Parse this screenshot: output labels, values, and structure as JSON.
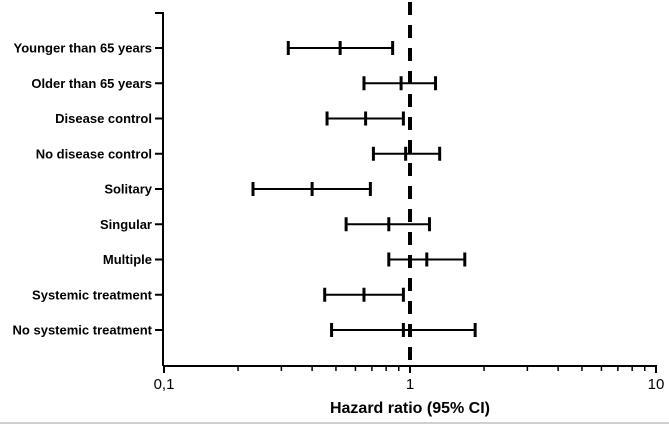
{
  "chart_data": {
    "type": "forest",
    "title": "",
    "x_axis": {
      "label": "Hazard ratio (95% CI)",
      "scale": "log",
      "min": 0.1,
      "max": 10,
      "major_ticks": [
        0.1,
        1,
        10
      ],
      "major_tick_labels": [
        "0,1",
        "1",
        "10"
      ],
      "minor_ticks": [
        0.2,
        0.3,
        0.4,
        0.5,
        0.6,
        0.7,
        0.8,
        0.9,
        2,
        3,
        4,
        5,
        6,
        7,
        8,
        9
      ]
    },
    "reference_line_x": 1,
    "legend": "none",
    "grid": false,
    "rows": [
      {
        "label": "Younger than 65 years",
        "hr": 0.52,
        "ci_low": 0.32,
        "ci_high": 0.85
      },
      {
        "label": "Older than 65 years",
        "hr": 0.92,
        "ci_low": 0.65,
        "ci_high": 1.27
      },
      {
        "label": "Disease control",
        "hr": 0.66,
        "ci_low": 0.46,
        "ci_high": 0.94
      },
      {
        "label": "No disease control",
        "hr": 0.96,
        "ci_low": 0.71,
        "ci_high": 1.32
      },
      {
        "label": "Solitary",
        "hr": 0.4,
        "ci_low": 0.23,
        "ci_high": 0.69
      },
      {
        "label": "Singular",
        "hr": 0.82,
        "ci_low": 0.55,
        "ci_high": 1.2
      },
      {
        "label": "Multiple",
        "hr": 1.17,
        "ci_low": 0.82,
        "ci_high": 1.67
      },
      {
        "label": "Systemic treatment",
        "hr": 0.65,
        "ci_low": 0.45,
        "ci_high": 0.94
      },
      {
        "label": "No systemic treatment",
        "hr": 0.94,
        "ci_low": 0.48,
        "ci_high": 1.84
      }
    ],
    "colors": {
      "line": "#000000",
      "background": "#ffffff",
      "bottom_edge": "#cfcfcf"
    }
  }
}
